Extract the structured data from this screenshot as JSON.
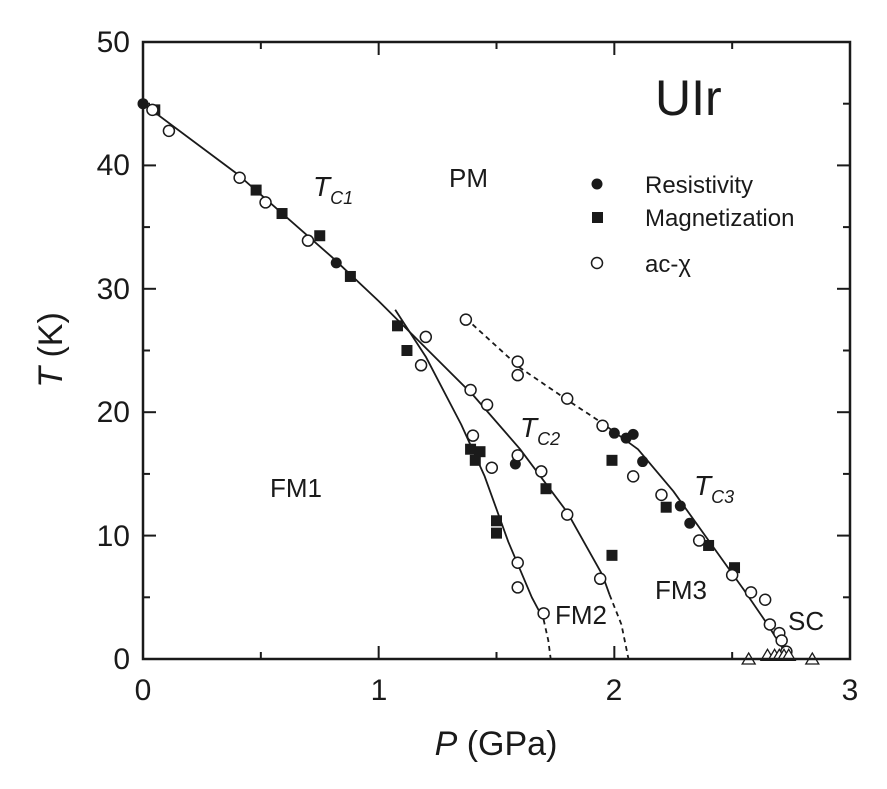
{
  "chart_data": {
    "type": "scatter",
    "title": "UIr",
    "xlabel": {
      "symbol": "P",
      "unit": "(GPa)"
    },
    "ylabel": {
      "symbol": "T",
      "unit": "(K)"
    },
    "xlim": [
      0,
      3
    ],
    "ylim": [
      0,
      50
    ],
    "xticks": [
      "0",
      "1",
      "2",
      "3"
    ],
    "yticks": [
      "0",
      "10",
      "20",
      "30",
      "40",
      "50"
    ],
    "grid": false,
    "legend_position": "top-right",
    "legend": [
      {
        "name": "Resistivity",
        "marker": "filled-circle"
      },
      {
        "name": "Magnetization",
        "marker": "filled-square"
      },
      {
        "name": "ac-χ",
        "marker": "open-circle"
      }
    ],
    "regions": [
      "PM",
      "FM1",
      "FM2",
      "FM3",
      "SC"
    ],
    "curve_labels": [
      {
        "main": "T",
        "sub": "C1"
      },
      {
        "main": "T",
        "sub": "C2"
      },
      {
        "main": "T",
        "sub": "C3"
      }
    ],
    "series": [
      {
        "name": "Resistivity",
        "marker": "filled-circle",
        "points": [
          [
            0.0,
            45.0
          ],
          [
            0.82,
            32.1
          ],
          [
            1.58,
            15.8
          ],
          [
            2.0,
            18.3
          ],
          [
            2.05,
            17.9
          ],
          [
            2.08,
            18.2
          ],
          [
            2.12,
            16.0
          ],
          [
            2.28,
            12.4
          ],
          [
            2.32,
            11.0
          ]
        ]
      },
      {
        "name": "Magnetization",
        "marker": "filled-square",
        "points": [
          [
            0.05,
            44.5
          ],
          [
            0.48,
            38.0
          ],
          [
            0.59,
            36.1
          ],
          [
            0.75,
            34.3
          ],
          [
            0.88,
            31.0
          ],
          [
            1.08,
            27.0
          ],
          [
            1.12,
            25.0
          ],
          [
            1.39,
            17.0
          ],
          [
            1.41,
            16.1
          ],
          [
            1.43,
            16.8
          ],
          [
            1.5,
            11.2
          ],
          [
            1.5,
            10.2
          ],
          [
            1.71,
            13.8
          ],
          [
            1.99,
            16.1
          ],
          [
            1.99,
            8.4
          ],
          [
            2.22,
            12.3
          ],
          [
            2.4,
            9.2
          ],
          [
            2.51,
            7.4
          ]
        ]
      },
      {
        "name": "ac-χ",
        "marker": "open-circle",
        "points": [
          [
            0.04,
            44.5
          ],
          [
            0.11,
            42.8
          ],
          [
            0.41,
            39.0
          ],
          [
            0.52,
            37.0
          ],
          [
            0.7,
            33.9
          ],
          [
            1.18,
            23.8
          ],
          [
            1.2,
            26.1
          ],
          [
            1.37,
            27.5
          ],
          [
            1.39,
            21.8
          ],
          [
            1.4,
            18.1
          ],
          [
            1.46,
            20.6
          ],
          [
            1.48,
            15.5
          ],
          [
            1.59,
            24.1
          ],
          [
            1.59,
            23.0
          ],
          [
            1.59,
            16.5
          ],
          [
            1.59,
            7.8
          ],
          [
            1.59,
            5.8
          ],
          [
            1.69,
            15.2
          ],
          [
            1.7,
            3.7
          ],
          [
            1.8,
            21.1
          ],
          [
            1.8,
            11.7
          ],
          [
            1.94,
            6.5
          ],
          [
            1.95,
            18.9
          ],
          [
            2.08,
            14.8
          ],
          [
            2.2,
            13.3
          ],
          [
            2.36,
            9.6
          ],
          [
            2.5,
            6.8
          ],
          [
            2.58,
            5.4
          ],
          [
            2.64,
            4.8
          ],
          [
            2.66,
            2.8
          ],
          [
            2.7,
            2.1
          ],
          [
            2.71,
            1.5
          ],
          [
            2.73,
            0.6
          ]
        ]
      },
      {
        "name": "SC",
        "marker": "open-triangle",
        "points": [
          [
            2.57,
            0.0
          ],
          [
            2.65,
            0.3
          ],
          [
            2.68,
            0.3
          ],
          [
            2.7,
            0.3
          ],
          [
            2.72,
            0.3
          ],
          [
            2.74,
            0.3
          ],
          [
            2.84,
            0.0
          ]
        ]
      }
    ],
    "lines": [
      {
        "name": "T_C1",
        "style": "solid",
        "points": [
          [
            0.0,
            45.0
          ],
          [
            0.4,
            39.3
          ],
          [
            0.8,
            32.6
          ],
          [
            1.0,
            29.0
          ],
          [
            1.2,
            25.2
          ],
          [
            1.4,
            21.4
          ],
          [
            1.6,
            17.0
          ],
          [
            1.8,
            11.9
          ],
          [
            1.95,
            6.8
          ],
          [
            1.98,
            5.2
          ]
        ]
      },
      {
        "name": "T_C1 extrapolation",
        "style": "dashed",
        "points": [
          [
            1.98,
            5.2
          ],
          [
            2.03,
            2.8
          ],
          [
            2.06,
            0.0
          ]
        ]
      },
      {
        "name": "T_C2",
        "style": "solid",
        "points": [
          [
            1.07,
            28.3
          ],
          [
            1.2,
            24.5
          ],
          [
            1.35,
            19.0
          ],
          [
            1.45,
            14.8
          ],
          [
            1.55,
            9.5
          ],
          [
            1.65,
            5.0
          ],
          [
            1.7,
            3.2
          ]
        ]
      },
      {
        "name": "T_C2 extrapolation",
        "style": "dashed",
        "points": [
          [
            1.7,
            3.2
          ],
          [
            1.72,
            1.5
          ],
          [
            1.73,
            0.0
          ]
        ]
      },
      {
        "name": "T_C3",
        "style": "dashed",
        "points": [
          [
            1.37,
            27.6
          ],
          [
            1.6,
            23.6
          ],
          [
            1.8,
            21.0
          ],
          [
            1.95,
            19.1
          ]
        ]
      },
      {
        "name": "T_C3",
        "style": "solid",
        "points": [
          [
            1.95,
            19.1
          ],
          [
            2.1,
            17.0
          ],
          [
            2.25,
            13.6
          ],
          [
            2.4,
            9.6
          ],
          [
            2.55,
            5.6
          ],
          [
            2.65,
            2.8
          ],
          [
            2.72,
            0.7
          ],
          [
            2.74,
            0.0
          ]
        ]
      }
    ]
  }
}
